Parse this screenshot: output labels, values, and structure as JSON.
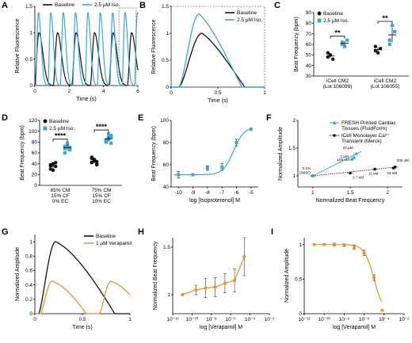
{
  "colors": {
    "black": "#111111",
    "blue": "#3aa6dd",
    "orange": "#e8922b",
    "dashed": "#777777"
  },
  "chart_data": [
    {
      "id": "A",
      "type": "line",
      "panel_label": "A",
      "xlabel": "Time (s)",
      "ylabel": "Relative Fluorescence",
      "xlim": [
        0,
        6
      ],
      "ylim": [
        0,
        1.5
      ],
      "xticks": [
        0,
        2,
        4,
        6
      ],
      "yticks": [
        0,
        0.5,
        1,
        1.5
      ],
      "legend_position": "top-center",
      "series": [
        {
          "name": "Baseline",
          "color": "#111111",
          "period": 1.08,
          "amplitude": 1.0
        },
        {
          "name": "2.5 µM Iso.",
          "color": "#3aa6dd",
          "period": 0.72,
          "amplitude": 1.38
        }
      ],
      "highlight_box_x": [
        4.9,
        5.9
      ]
    },
    {
      "id": "B",
      "type": "line",
      "panel_label": "B",
      "xlabel": "Time (s)",
      "ylabel": "Relative Fluorescence",
      "xlim": [
        0,
        1
      ],
      "ylim": [
        0,
        1.5
      ],
      "xticks": [
        0,
        0.5,
        1
      ],
      "yticks": [
        0,
        0.5,
        1,
        1.5
      ],
      "legend_position": "top-right",
      "series": [
        {
          "name": "Baseline",
          "color": "#111111",
          "peak_x": 0.33,
          "peak_y": 1.0
        },
        {
          "name": "2.5 µM Iso.",
          "color": "#3aa6dd",
          "peak_x": 0.3,
          "peak_y": 1.36
        }
      ]
    },
    {
      "id": "C",
      "type": "scatter",
      "panel_label": "C",
      "ylabel": "Beat Frequency (bpm)",
      "ylim": [
        30,
        90
      ],
      "yticks": [
        30,
        40,
        50,
        60,
        70,
        80,
        90
      ],
      "categories": [
        "iCell CM2 (Lot 106099)",
        "iCell CM2 (Lot 106055)"
      ],
      "category_lines": [
        [
          "iCell CM2",
          "(Lot 106099)"
        ],
        [
          "iCell CM2",
          "(Lot 106055)"
        ]
      ],
      "legend_position": "top-left",
      "series": [
        {
          "name": "Baseline",
          "color": "#111111",
          "points": [
            [
              48,
              50,
              46,
              52
            ],
            [
              54,
              52,
              56,
              58
            ]
          ],
          "mean": [
            49,
            55
          ]
        },
        {
          "name": "2.5 µM Iso.",
          "color": "#3aa6dd",
          "points": [
            [
              62,
              58,
              64,
              60
            ],
            [
              64,
              78,
              72,
              60
            ]
          ],
          "mean": [
            61,
            69
          ]
        }
      ],
      "significance": [
        "**",
        "**"
      ]
    },
    {
      "id": "D",
      "type": "scatter",
      "panel_label": "D",
      "ylabel": "Beat Frequency (bpm)",
      "ylim": [
        0,
        120
      ],
      "yticks": [
        0,
        20,
        40,
        60,
        80,
        100,
        120
      ],
      "categories": [
        "85% CM 15% CF 0% EC",
        "75% CM 15% CF 10% EC"
      ],
      "category_lines": [
        [
          "85% CM",
          "15% CF",
          "0% EC"
        ],
        [
          "75% CM",
          "15% CF",
          "10% EC"
        ]
      ],
      "legend_position": "top-left",
      "series": [
        {
          "name": "Baseline",
          "color": "#111111",
          "points": [
            [
              30,
              40,
              35,
              38,
              28,
              42,
              36
            ],
            [
              42,
              48,
              38,
              50,
              45,
              40,
              52,
              46,
              44
            ]
          ]
        },
        {
          "name": "2.5 µM Iso.",
          "color": "#3aa6dd",
          "points": [
            [
              60,
              75,
              70,
              68,
              78,
              66,
              72
            ],
            [
              80,
              88,
              92,
              84,
              86,
              90,
              82,
              95,
              78
            ]
          ]
        }
      ],
      "significance": [
        "****",
        "****"
      ]
    },
    {
      "id": "E",
      "type": "scatter",
      "panel_label": "E",
      "xlabel": "log [Isoproterenol] M",
      "ylabel": "Beat Frequency (bpm)",
      "xlim": [
        -10.5,
        -4.5
      ],
      "ylim": [
        40,
        100
      ],
      "xticks": [
        -10,
        -9,
        -8,
        -7,
        -6,
        -5
      ],
      "yticks": [
        40,
        60,
        80,
        100
      ],
      "points": [
        {
          "x": -10,
          "y": 51,
          "err": 3
        },
        {
          "x": -9,
          "y": 51,
          "err": 0
        },
        {
          "x": -8,
          "y": 57,
          "err": 2
        },
        {
          "x": -7,
          "y": 58,
          "err": 3
        },
        {
          "x": -6,
          "y": 80,
          "err": 3
        },
        {
          "x": -5,
          "y": 92,
          "err": 0
        }
      ],
      "fit": {
        "bottom": 51,
        "top": 94,
        "logEC50": -6.2,
        "hill": 1.2
      }
    },
    {
      "id": "F",
      "type": "scatter",
      "panel_label": "F",
      "xlabel": "Normalized Beat Frequency",
      "ylabel": "Normalized Amplitude",
      "xlim": [
        0.8,
        2.2
      ],
      "ylim": [
        0.8,
        2.0
      ],
      "xticks": [
        1,
        1.5,
        2
      ],
      "yticks": [
        1,
        1.5,
        2
      ],
      "legend_position": "top",
      "series": [
        {
          "name": "FRESH Printed Cardiac Tissues (FluidForm)",
          "color": "#3aa6dd",
          "points": [
            {
              "x": 1,
              "y": 1,
              "label": "0.1% DMSO"
            },
            {
              "x": 1.52,
              "y": 1.3,
              "label": "1 µM"
            },
            {
              "x": 1.55,
              "y": 1.33,
              "label": "100 nM"
            },
            {
              "x": 1.58,
              "y": 1.4,
              "label": "10 µM"
            }
          ]
        },
        {
          "name": "iCell Monolayer Ca²⁺ Transient  (Merck)",
          "color": "#111111",
          "points": [
            {
              "x": 1,
              "y": 1,
              "label": ""
            },
            {
              "x": 1.5,
              "y": 1.05,
              "label": "3.7 nM"
            },
            {
              "x": 1.83,
              "y": 1.12,
              "label": "11 nM"
            },
            {
              "x": 2.08,
              "y": 1.14,
              "label": "33 nM"
            },
            {
              "x": 2.1,
              "y": 1.16,
              "label": "100 nM"
            }
          ]
        }
      ],
      "annotation_lines": [
        [
          "0.1%",
          "DMSO"
        ],
        [
          "iCell Monolayer Ca²⁺",
          "Transient  (Merck)"
        ]
      ]
    },
    {
      "id": "G",
      "type": "line",
      "panel_label": "G",
      "xlabel": "Time (s)",
      "ylabel": "Normalized Amplitude",
      "xlim": [
        0,
        1
      ],
      "ylim": [
        0,
        1.1
      ],
      "xticks": [
        0,
        0.5,
        1
      ],
      "yticks": [
        0,
        0.2,
        0.4,
        0.6,
        0.8,
        1
      ],
      "legend_position": "top-right",
      "series": [
        {
          "name": "Baseline",
          "color": "#111111",
          "peak_x": 0.22,
          "peak_y": 1.0
        },
        {
          "name": "1 µM Verapamil",
          "color": "#e8922b",
          "peak_x": 0.18,
          "peak_y": 0.45
        }
      ]
    },
    {
      "id": "H",
      "type": "scatter",
      "panel_label": "H",
      "xlabel": "log [Verapamil] M",
      "ylabel": "Normalized Beat Frequency",
      "xlim": [
        -12,
        -2
      ],
      "ylim": [
        0.8,
        1.6
      ],
      "xticks": [
        -12,
        -10,
        -8,
        -6,
        -4,
        -2
      ],
      "xtick_labels": [
        "10⁻¹²",
        "10⁻¹⁰",
        "10⁻⁸",
        "10⁻⁶",
        "10⁻⁴",
        "10⁻²"
      ],
      "yticks": [
        1,
        1.5
      ],
      "points": [
        {
          "x": -11,
          "y": 1.0,
          "err": 0
        },
        {
          "x": -9.6,
          "y": 1.05,
          "err": 0.05
        },
        {
          "x": -8.6,
          "y": 1.07,
          "err": 0.1
        },
        {
          "x": -7.6,
          "y": 1.08,
          "err": 0.1
        },
        {
          "x": -6.6,
          "y": 1.12,
          "err": 0.1
        },
        {
          "x": -5.6,
          "y": 1.15,
          "err": 0.12
        },
        {
          "x": -4.6,
          "y": 1.4,
          "err": 0.2
        }
      ]
    },
    {
      "id": "I",
      "type": "scatter",
      "panel_label": "I",
      "xlabel": "log [Verapamil] M",
      "ylabel": "Normalized Amplitude",
      "xlim": [
        -12,
        -2
      ],
      "ylim": [
        0,
        1.1
      ],
      "xticks": [
        -12,
        -10,
        -8,
        -6,
        -4,
        -2
      ],
      "xtick_labels": [
        "10⁻¹²",
        "10⁻¹⁰",
        "10⁻⁸",
        "10⁻⁶",
        "10⁻⁴",
        "10⁻²"
      ],
      "yticks": [
        0,
        0.5,
        1
      ],
      "points": [
        {
          "x": -11,
          "y": 1.0,
          "err": 0
        },
        {
          "x": -10,
          "y": 1.0,
          "err": 0.01
        },
        {
          "x": -9,
          "y": 1.0,
          "err": 0.02
        },
        {
          "x": -8,
          "y": 0.99,
          "err": 0.02
        },
        {
          "x": -7,
          "y": 0.96,
          "err": 0.03
        },
        {
          "x": -6,
          "y": 0.88,
          "err": 0.04
        },
        {
          "x": -5,
          "y": 0.52,
          "err": 0.04
        },
        {
          "x": -4.2,
          "y": 0.05,
          "err": 0
        }
      ],
      "fit": {
        "bottom": 0,
        "top": 1,
        "logIC50": -5.0,
        "hill": 0.9
      }
    }
  ]
}
